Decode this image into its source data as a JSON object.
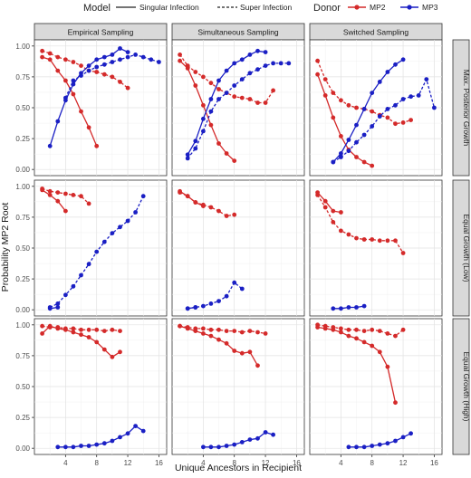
{
  "legend": {
    "model_title": "Model",
    "singular_label": "Singular Infection",
    "super_label": "Super Infection",
    "donor_title": "Donor",
    "donors": [
      {
        "name": "MP2",
        "color": "#d42a2a"
      },
      {
        "name": "MP3",
        "color": "#1a1fc4"
      }
    ]
  },
  "chart_data": {
    "type": "line",
    "xlabel": "Unique Ancestors in Recipient",
    "ylabel": "Probability MP2 Root",
    "xlim": [
      0,
      17
    ],
    "ylim": [
      -0.05,
      1.05
    ],
    "xticks": [
      "4",
      "8",
      "12",
      "16"
    ],
    "xtick_values": [
      4,
      8,
      12,
      16
    ],
    "yticks": [
      "0.00",
      "0.25",
      "0.50",
      "0.75",
      "1.00"
    ],
    "ytick_values": [
      0,
      0.25,
      0.5,
      0.75,
      1.0
    ],
    "grid": true,
    "legend_position": "top",
    "col_labels": [
      "Empirical Sampling",
      "Simultaneous Sampling",
      "Switched Sampling"
    ],
    "row_labels": [
      "Max. Posterior Growth",
      "Equal Growth (Low)",
      "Equal Growth (High)"
    ],
    "panels": [
      {
        "row": 0,
        "col": 0,
        "series": [
          {
            "name": "MP2",
            "model": "Singular Infection",
            "x": [
              1,
              2,
              3,
              4,
              5,
              6,
              7,
              8
            ],
            "y": [
              0.91,
              0.89,
              0.8,
              0.72,
              0.61,
              0.47,
              0.34,
              0.19
            ]
          },
          {
            "name": "MP2",
            "model": "Super Infection",
            "x": [
              1,
              2,
              3,
              4,
              5,
              6,
              7,
              8,
              9,
              10,
              11,
              12
            ],
            "y": [
              0.96,
              0.94,
              0.91,
              0.89,
              0.87,
              0.84,
              0.8,
              0.79,
              0.77,
              0.75,
              0.71,
              0.66
            ]
          },
          {
            "name": "MP3",
            "model": "Singular Infection",
            "x": [
              2,
              3,
              4,
              5,
              6,
              7,
              8,
              9,
              10,
              11,
              12
            ],
            "y": [
              0.19,
              0.39,
              0.56,
              0.69,
              0.78,
              0.84,
              0.89,
              0.91,
              0.93,
              0.98,
              0.95
            ]
          },
          {
            "name": "MP3",
            "model": "Super Infection",
            "x": [
              4,
              5,
              6,
              7,
              8,
              9,
              10,
              11,
              12,
              13,
              14,
              15,
              16
            ],
            "y": [
              0.58,
              0.72,
              0.76,
              0.8,
              0.83,
              0.85,
              0.87,
              0.89,
              0.91,
              0.93,
              0.91,
              0.89,
              0.87
            ]
          }
        ]
      },
      {
        "row": 0,
        "col": 1,
        "series": [
          {
            "name": "MP2",
            "model": "Singular Infection",
            "x": [
              1,
              2,
              3,
              4,
              5,
              6,
              7,
              8
            ],
            "y": [
              0.88,
              0.82,
              0.68,
              0.52,
              0.36,
              0.21,
              0.13,
              0.07
            ]
          },
          {
            "name": "MP2",
            "model": "Super Infection",
            "x": [
              1,
              2,
              3,
              4,
              5,
              6,
              7,
              8,
              9,
              10,
              11,
              12,
              13
            ],
            "y": [
              0.93,
              0.84,
              0.79,
              0.75,
              0.7,
              0.65,
              0.62,
              0.59,
              0.58,
              0.57,
              0.54,
              0.54,
              0.64
            ]
          },
          {
            "name": "MP3",
            "model": "Singular Infection",
            "x": [
              2,
              3,
              4,
              5,
              6,
              7,
              8,
              9,
              10,
              11,
              12
            ],
            "y": [
              0.12,
              0.23,
              0.41,
              0.57,
              0.72,
              0.8,
              0.86,
              0.89,
              0.93,
              0.96,
              0.95
            ]
          },
          {
            "name": "MP3",
            "model": "Super Infection",
            "x": [
              2,
              3,
              4,
              5,
              6,
              7,
              8,
              9,
              10,
              11,
              12,
              13,
              14,
              15
            ],
            "y": [
              0.09,
              0.17,
              0.31,
              0.47,
              0.57,
              0.62,
              0.68,
              0.73,
              0.78,
              0.81,
              0.84,
              0.86,
              0.86,
              0.86
            ]
          }
        ]
      },
      {
        "row": 0,
        "col": 2,
        "series": [
          {
            "name": "MP2",
            "model": "Singular Infection",
            "x": [
              1,
              2,
              3,
              4,
              5,
              6,
              7,
              8
            ],
            "y": [
              0.77,
              0.6,
              0.42,
              0.27,
              0.16,
              0.1,
              0.06,
              0.03
            ]
          },
          {
            "name": "MP2",
            "model": "Super Infection",
            "x": [
              1,
              2,
              3,
              4,
              5,
              6,
              7,
              8,
              9,
              10,
              11,
              12,
              13
            ],
            "y": [
              0.88,
              0.73,
              0.62,
              0.56,
              0.52,
              0.5,
              0.49,
              0.47,
              0.44,
              0.42,
              0.37,
              0.38,
              0.4
            ]
          },
          {
            "name": "MP3",
            "model": "Singular Infection",
            "x": [
              3,
              4,
              5,
              6,
              7,
              8,
              9,
              10,
              11,
              12
            ],
            "y": [
              0.06,
              0.13,
              0.24,
              0.36,
              0.49,
              0.62,
              0.71,
              0.79,
              0.85,
              0.89
            ]
          },
          {
            "name": "MP3",
            "model": "Super Infection",
            "x": [
              3,
              4,
              5,
              6,
              7,
              8,
              9,
              10,
              11,
              12,
              13,
              14,
              15,
              16
            ],
            "y": [
              0.06,
              0.1,
              0.15,
              0.22,
              0.28,
              0.35,
              0.43,
              0.49,
              0.52,
              0.57,
              0.59,
              0.6,
              0.73,
              0.5
            ]
          }
        ]
      },
      {
        "row": 1,
        "col": 0,
        "series": [
          {
            "name": "MP2",
            "model": "Singular Infection",
            "x": [
              1,
              2,
              3,
              4
            ],
            "y": [
              0.97,
              0.93,
              0.88,
              0.8
            ]
          },
          {
            "name": "MP2",
            "model": "Super Infection",
            "x": [
              1,
              2,
              3,
              4,
              5,
              6,
              7
            ],
            "y": [
              0.98,
              0.96,
              0.95,
              0.94,
              0.93,
              0.92,
              0.86
            ]
          },
          {
            "name": "MP3",
            "model": "Super Infection",
            "x": [
              2,
              3,
              4,
              5,
              6,
              7,
              8,
              9,
              10,
              11,
              12,
              13,
              14
            ],
            "y": [
              0.02,
              0.05,
              0.12,
              0.19,
              0.28,
              0.37,
              0.47,
              0.55,
              0.62,
              0.67,
              0.72,
              0.79,
              0.92
            ]
          },
          {
            "name": "MP3",
            "model": "Singular Infection",
            "x": [
              2,
              3
            ],
            "y": [
              0.01,
              0.02
            ]
          }
        ]
      },
      {
        "row": 1,
        "col": 1,
        "series": [
          {
            "name": "MP2",
            "model": "Singular Infection",
            "x": [
              1,
              2,
              3,
              4
            ],
            "y": [
              0.96,
              0.92,
              0.87,
              0.84
            ]
          },
          {
            "name": "MP2",
            "model": "Super Infection",
            "x": [
              1,
              2,
              3,
              4,
              5,
              6,
              7,
              8
            ],
            "y": [
              0.95,
              0.92,
              0.87,
              0.85,
              0.83,
              0.8,
              0.76,
              0.77
            ]
          },
          {
            "name": "MP3",
            "model": "Singular Infection",
            "x": [
              2,
              3
            ],
            "y": [
              0.01,
              0.02
            ]
          },
          {
            "name": "MP3",
            "model": "Super Infection",
            "x": [
              2,
              3,
              4,
              5,
              6,
              7,
              8,
              9
            ],
            "y": [
              0.01,
              0.02,
              0.03,
              0.05,
              0.07,
              0.11,
              0.22,
              0.17
            ]
          }
        ]
      },
      {
        "row": 1,
        "col": 2,
        "series": [
          {
            "name": "MP2",
            "model": "Singular Infection",
            "x": [
              1,
              2,
              3,
              4
            ],
            "y": [
              0.95,
              0.88,
              0.8,
              0.79
            ]
          },
          {
            "name": "MP2",
            "model": "Super Infection",
            "x": [
              1,
              2,
              3,
              4,
              5,
              6,
              7,
              8,
              9,
              10,
              11,
              12
            ],
            "y": [
              0.93,
              0.83,
              0.71,
              0.64,
              0.61,
              0.58,
              0.57,
              0.57,
              0.56,
              0.56,
              0.56,
              0.46
            ]
          },
          {
            "name": "MP3",
            "model": "Singular Infection",
            "x": [
              3,
              4,
              5,
              6,
              7
            ],
            "y": [
              0.01,
              0.01,
              0.02,
              0.02,
              0.03
            ]
          }
        ]
      },
      {
        "row": 2,
        "col": 0,
        "series": [
          {
            "name": "MP2",
            "model": "Singular Infection",
            "x": [
              1,
              2,
              3,
              4,
              5,
              6,
              7,
              8,
              9,
              10,
              11
            ],
            "y": [
              0.93,
              0.99,
              0.97,
              0.96,
              0.94,
              0.92,
              0.9,
              0.86,
              0.8,
              0.74,
              0.78
            ]
          },
          {
            "name": "MP2",
            "model": "Super Infection",
            "x": [
              1,
              2,
              3,
              4,
              5,
              6,
              7,
              8,
              9,
              10,
              11
            ],
            "y": [
              0.99,
              0.98,
              0.98,
              0.97,
              0.97,
              0.96,
              0.96,
              0.96,
              0.95,
              0.96,
              0.95
            ]
          },
          {
            "name": "MP3",
            "model": "Singular Infection",
            "x": [
              3,
              4,
              5,
              6,
              7,
              8,
              9,
              10,
              11,
              12,
              13,
              14
            ],
            "y": [
              0.01,
              0.01,
              0.01,
              0.02,
              0.02,
              0.03,
              0.04,
              0.06,
              0.09,
              0.12,
              0.18,
              0.14
            ]
          }
        ]
      },
      {
        "row": 2,
        "col": 1,
        "series": [
          {
            "name": "MP2",
            "model": "Singular Infection",
            "x": [
              1,
              2,
              3,
              4,
              5,
              6,
              7,
              8,
              9,
              10,
              11
            ],
            "y": [
              0.99,
              0.97,
              0.95,
              0.93,
              0.91,
              0.88,
              0.85,
              0.79,
              0.77,
              0.78,
              0.67
            ]
          },
          {
            "name": "MP2",
            "model": "Super Infection",
            "x": [
              1,
              2,
              3,
              4,
              5,
              6,
              7,
              8,
              9,
              10,
              11,
              12
            ],
            "y": [
              0.99,
              0.98,
              0.97,
              0.97,
              0.96,
              0.96,
              0.95,
              0.95,
              0.94,
              0.95,
              0.94,
              0.93
            ]
          },
          {
            "name": "MP3",
            "model": "Singular Infection",
            "x": [
              4,
              5,
              6,
              7,
              8,
              9,
              10,
              11,
              12,
              13
            ],
            "y": [
              0.01,
              0.01,
              0.01,
              0.02,
              0.03,
              0.05,
              0.07,
              0.08,
              0.13,
              0.11
            ]
          }
        ]
      },
      {
        "row": 2,
        "col": 2,
        "series": [
          {
            "name": "MP2",
            "model": "Singular Infection",
            "x": [
              1,
              2,
              3,
              4,
              5,
              6,
              7,
              8,
              9,
              10,
              11
            ],
            "y": [
              0.98,
              0.97,
              0.96,
              0.94,
              0.91,
              0.89,
              0.86,
              0.83,
              0.78,
              0.66,
              0.37
            ]
          },
          {
            "name": "MP2",
            "model": "Super Infection",
            "x": [
              1,
              2,
              3,
              4,
              5,
              6,
              7,
              8,
              9,
              10,
              11,
              12
            ],
            "y": [
              1.0,
              0.99,
              0.98,
              0.97,
              0.96,
              0.96,
              0.95,
              0.96,
              0.95,
              0.93,
              0.91,
              0.96
            ]
          },
          {
            "name": "MP3",
            "model": "Singular Infection",
            "x": [
              5,
              6,
              7,
              8,
              9,
              10,
              11,
              12,
              13
            ],
            "y": [
              0.01,
              0.01,
              0.01,
              0.02,
              0.03,
              0.04,
              0.06,
              0.09,
              0.12
            ]
          }
        ]
      }
    ]
  }
}
